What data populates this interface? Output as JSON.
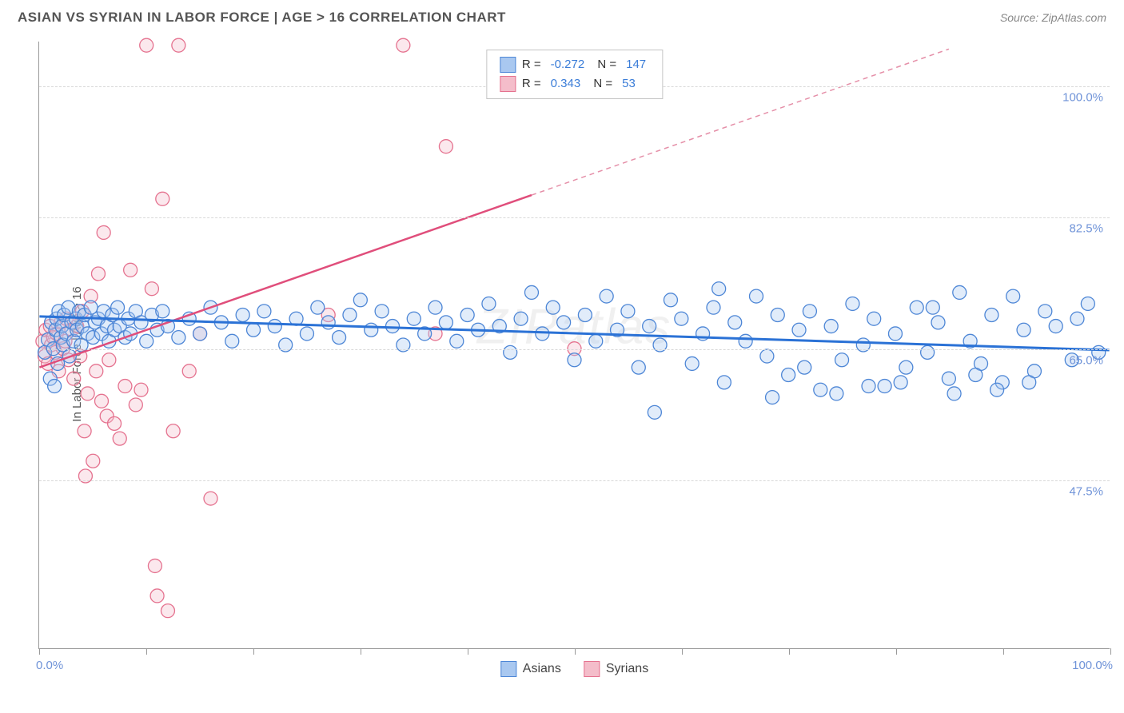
{
  "header": {
    "title": "ASIAN VS SYRIAN IN LABOR FORCE | AGE > 16 CORRELATION CHART",
    "source": "Source: ZipAtlas.com"
  },
  "watermark": "ZIPatlas",
  "chart": {
    "type": "scatter",
    "y_axis_label": "In Labor Force | Age > 16",
    "xlim": [
      0,
      100
    ],
    "ylim": [
      25,
      106
    ],
    "y_gridlines": [
      47.5,
      65.0,
      82.5,
      100.0
    ],
    "y_tick_labels": [
      "47.5%",
      "65.0%",
      "82.5%",
      "100.0%"
    ],
    "x_ticks": [
      0,
      10,
      20,
      30,
      40,
      50,
      60,
      70,
      80,
      90,
      100
    ],
    "x_tick_labels": {
      "left": "0.0%",
      "right": "100.0%"
    },
    "background_color": "#ffffff",
    "grid_color": "#d8d8d8",
    "axis_color": "#999999",
    "marker_radius": 8.5,
    "marker_stroke_width": 1.3,
    "marker_fill_opacity": 0.35,
    "series": {
      "asians": {
        "label": "Asians",
        "fill": "#a9c8f0",
        "stroke": "#4d86d6",
        "R": "-0.272",
        "N": "147",
        "trend": {
          "x1": 0,
          "y1": 69.3,
          "x2": 100,
          "y2": 64.8,
          "color": "#2b72d6",
          "width": 3
        },
        "points": [
          [
            0.5,
            64.5
          ],
          [
            0.8,
            66.2
          ],
          [
            1.0,
            61.0
          ],
          [
            1.1,
            68.5
          ],
          [
            1.3,
            65.0
          ],
          [
            1.4,
            60.0
          ],
          [
            1.5,
            67.5
          ],
          [
            1.6,
            69.0
          ],
          [
            1.7,
            63.0
          ],
          [
            1.8,
            70.0
          ],
          [
            2.0,
            66.5
          ],
          [
            2.1,
            68.0
          ],
          [
            2.2,
            65.5
          ],
          [
            2.3,
            69.5
          ],
          [
            2.5,
            67.0
          ],
          [
            2.7,
            70.5
          ],
          [
            2.8,
            64.0
          ],
          [
            3.0,
            68.5
          ],
          [
            3.2,
            66.0
          ],
          [
            3.4,
            69.0
          ],
          [
            3.5,
            67.5
          ],
          [
            3.7,
            70.0
          ],
          [
            3.9,
            65.5
          ],
          [
            4.0,
            68.0
          ],
          [
            4.2,
            69.5
          ],
          [
            4.5,
            67.0
          ],
          [
            4.8,
            70.5
          ],
          [
            5.0,
            66.5
          ],
          [
            5.2,
            68.5
          ],
          [
            5.5,
            69.0
          ],
          [
            5.8,
            67.0
          ],
          [
            6.0,
            70.0
          ],
          [
            6.3,
            68.0
          ],
          [
            6.5,
            66.0
          ],
          [
            6.8,
            69.5
          ],
          [
            7.0,
            67.5
          ],
          [
            7.3,
            70.5
          ],
          [
            7.5,
            68.0
          ],
          [
            8.0,
            66.5
          ],
          [
            8.3,
            69.0
          ],
          [
            8.5,
            67.0
          ],
          [
            9.0,
            70.0
          ],
          [
            9.5,
            68.5
          ],
          [
            10.0,
            66.0
          ],
          [
            10.5,
            69.5
          ],
          [
            11.0,
            67.5
          ],
          [
            11.5,
            70.0
          ],
          [
            12.0,
            68.0
          ],
          [
            13.0,
            66.5
          ],
          [
            14.0,
            69.0
          ],
          [
            15.0,
            67.0
          ],
          [
            16.0,
            70.5
          ],
          [
            17.0,
            68.5
          ],
          [
            18.0,
            66.0
          ],
          [
            19.0,
            69.5
          ],
          [
            20.0,
            67.5
          ],
          [
            21.0,
            70.0
          ],
          [
            22.0,
            68.0
          ],
          [
            23.0,
            65.5
          ],
          [
            24.0,
            69.0
          ],
          [
            25.0,
            67.0
          ],
          [
            26.0,
            70.5
          ],
          [
            27.0,
            68.5
          ],
          [
            28.0,
            66.5
          ],
          [
            29.0,
            69.5
          ],
          [
            30.0,
            71.5
          ],
          [
            31.0,
            67.5
          ],
          [
            32.0,
            70.0
          ],
          [
            33.0,
            68.0
          ],
          [
            34.0,
            65.5
          ],
          [
            35.0,
            69.0
          ],
          [
            36.0,
            67.0
          ],
          [
            37.0,
            70.5
          ],
          [
            38.0,
            68.5
          ],
          [
            39.0,
            66.0
          ],
          [
            40.0,
            69.5
          ],
          [
            41.0,
            67.5
          ],
          [
            42.0,
            71.0
          ],
          [
            43.0,
            68.0
          ],
          [
            44.0,
            64.5
          ],
          [
            45.0,
            69.0
          ],
          [
            46.0,
            72.5
          ],
          [
            47.0,
            67.0
          ],
          [
            48.0,
            70.5
          ],
          [
            49.0,
            68.5
          ],
          [
            50.0,
            63.5
          ],
          [
            51.0,
            69.5
          ],
          [
            52.0,
            66.0
          ],
          [
            53.0,
            72.0
          ],
          [
            54.0,
            67.5
          ],
          [
            55.0,
            70.0
          ],
          [
            56.0,
            62.5
          ],
          [
            57.0,
            68.0
          ],
          [
            58.0,
            65.5
          ],
          [
            59.0,
            71.5
          ],
          [
            60.0,
            69.0
          ],
          [
            61.0,
            63.0
          ],
          [
            62.0,
            67.0
          ],
          [
            63.0,
            70.5
          ],
          [
            64.0,
            60.5
          ],
          [
            65.0,
            68.5
          ],
          [
            66.0,
            66.0
          ],
          [
            67.0,
            72.0
          ],
          [
            68.0,
            64.0
          ],
          [
            69.0,
            69.5
          ],
          [
            70.0,
            61.5
          ],
          [
            71.0,
            67.5
          ],
          [
            72.0,
            70.0
          ],
          [
            73.0,
            59.5
          ],
          [
            74.0,
            68.0
          ],
          [
            75.0,
            63.5
          ],
          [
            76.0,
            71.0
          ],
          [
            77.0,
            65.5
          ],
          [
            78.0,
            69.0
          ],
          [
            79.0,
            60.0
          ],
          [
            80.0,
            67.0
          ],
          [
            81.0,
            62.5
          ],
          [
            82.0,
            70.5
          ],
          [
            83.0,
            64.5
          ],
          [
            84.0,
            68.5
          ],
          [
            85.0,
            61.0
          ],
          [
            86.0,
            72.5
          ],
          [
            87.0,
            66.0
          ],
          [
            88.0,
            63.0
          ],
          [
            89.0,
            69.5
          ],
          [
            90.0,
            60.5
          ],
          [
            91.0,
            72.0
          ],
          [
            92.0,
            67.5
          ],
          [
            93.0,
            62.0
          ],
          [
            94.0,
            70.0
          ],
          [
            83.5,
            70.5
          ],
          [
            87.5,
            61.5
          ],
          [
            95.0,
            68.0
          ],
          [
            77.5,
            60.0
          ],
          [
            68.5,
            58.5
          ],
          [
            57.5,
            56.5
          ],
          [
            98.0,
            71.0
          ],
          [
            96.5,
            63.5
          ],
          [
            71.5,
            62.5
          ],
          [
            63.5,
            73.0
          ],
          [
            80.5,
            60.5
          ],
          [
            85.5,
            59.0
          ],
          [
            99.0,
            64.5
          ],
          [
            97.0,
            69.0
          ],
          [
            92.5,
            60.5
          ],
          [
            89.5,
            59.5
          ],
          [
            74.5,
            59.0
          ]
        ]
      },
      "syrians": {
        "label": "Syrians",
        "fill": "#f4bdca",
        "stroke": "#e5728f",
        "R": "0.343",
        "N": "53",
        "trend_solid": {
          "x1": 0,
          "y1": 62.5,
          "x2": 46,
          "y2": 85.5,
          "color": "#e04e7b",
          "width": 2.5
        },
        "trend_dashed": {
          "x1": 46,
          "y1": 85.5,
          "x2": 85,
          "y2": 105,
          "color": "#e58fa8",
          "width": 1.5,
          "dash": "6,5"
        },
        "points": [
          [
            0.3,
            66.0
          ],
          [
            0.5,
            64.0
          ],
          [
            0.6,
            67.5
          ],
          [
            0.8,
            63.0
          ],
          [
            1.0,
            68.0
          ],
          [
            1.1,
            65.5
          ],
          [
            1.3,
            66.5
          ],
          [
            1.5,
            64.5
          ],
          [
            1.6,
            67.0
          ],
          [
            1.8,
            62.0
          ],
          [
            2.0,
            68.5
          ],
          [
            2.2,
            65.0
          ],
          [
            2.4,
            66.0
          ],
          [
            2.5,
            69.0
          ],
          [
            2.7,
            63.5
          ],
          [
            3.0,
            67.5
          ],
          [
            3.2,
            61.0
          ],
          [
            3.5,
            68.0
          ],
          [
            3.8,
            64.0
          ],
          [
            4.0,
            70.0
          ],
          [
            4.2,
            54.0
          ],
          [
            4.5,
            59.0
          ],
          [
            4.8,
            72.0
          ],
          [
            5.0,
            50.0
          ],
          [
            5.3,
            62.0
          ],
          [
            5.5,
            75.0
          ],
          [
            5.8,
            58.0
          ],
          [
            6.0,
            80.5
          ],
          [
            6.3,
            56.0
          ],
          [
            6.5,
            63.5
          ],
          [
            7.0,
            55.0
          ],
          [
            7.5,
            53.0
          ],
          [
            8.0,
            60.0
          ],
          [
            8.5,
            75.5
          ],
          [
            9.0,
            57.5
          ],
          [
            9.5,
            59.5
          ],
          [
            10.0,
            105.5
          ],
          [
            10.5,
            73.0
          ],
          [
            11.0,
            32.0
          ],
          [
            11.5,
            85.0
          ],
          [
            12.0,
            30.0
          ],
          [
            12.5,
            54.0
          ],
          [
            13.0,
            105.5
          ],
          [
            14.0,
            62.0
          ],
          [
            15.0,
            67.0
          ],
          [
            16.0,
            45.0
          ],
          [
            4.3,
            48.0
          ],
          [
            34.0,
            105.5
          ],
          [
            37.0,
            67.0
          ],
          [
            38.0,
            92.0
          ],
          [
            50.0,
            65.0
          ],
          [
            27.0,
            69.5
          ],
          [
            10.8,
            36.0
          ]
        ]
      }
    }
  },
  "legend_bottom": [
    {
      "label": "Asians",
      "fill": "#a9c8f0",
      "stroke": "#4d86d6"
    },
    {
      "label": "Syrians",
      "fill": "#f4bdca",
      "stroke": "#e5728f"
    }
  ]
}
